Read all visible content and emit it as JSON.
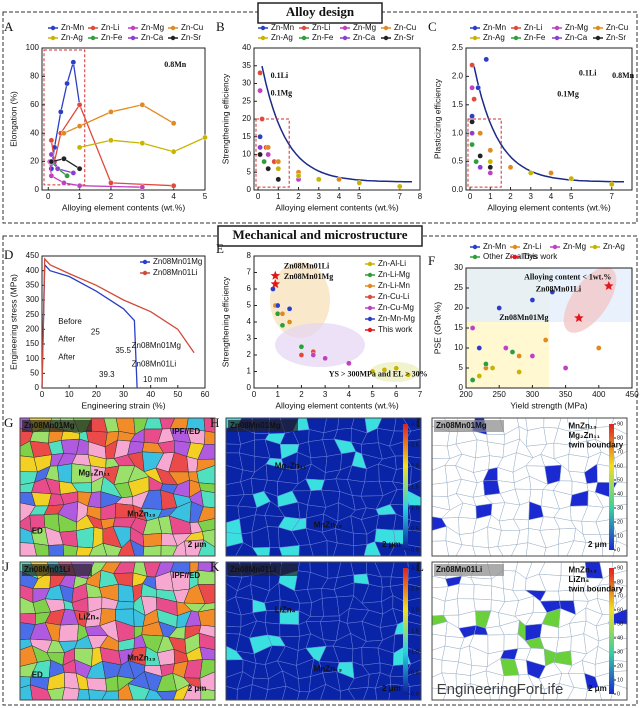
{
  "sections": [
    "Alloy design",
    "Mechanical and microstructure"
  ],
  "chart_data": [
    {
      "type": "line",
      "title": "A",
      "markers": true,
      "xlabel": "Alloying element contents (wt.%)",
      "ylabel": "Elongation (%)",
      "xlim": [
        -0.2,
        5
      ],
      "xticks": [
        0,
        1,
        2,
        3,
        4,
        5
      ],
      "ylim": [
        0,
        100
      ],
      "yticks": [
        0,
        20,
        40,
        60,
        80,
        100
      ],
      "series": [
        {
          "name": "Zn-Mn",
          "color": "#2b3fc4",
          "x": [
            0.1,
            0.2,
            0.4,
            0.6,
            0.8,
            1.0
          ],
          "values": [
            15,
            30,
            55,
            75,
            90,
            60
          ]
        },
        {
          "name": "Zn-Li",
          "color": "#e04a3a",
          "x": [
            0.1,
            0.2,
            0.4,
            1,
            2,
            4
          ],
          "values": [
            35,
            20,
            40,
            60,
            5,
            3
          ]
        },
        {
          "name": "Zn-Mg",
          "color": "#c040c0",
          "x": [
            0.05,
            0.1,
            0.5,
            1,
            3
          ],
          "values": [
            20,
            10,
            5,
            3,
            2
          ]
        },
        {
          "name": "Zn-Cu",
          "color": "#e08a1e",
          "x": [
            0.5,
            1,
            2,
            3,
            4
          ],
          "values": [
            40,
            45,
            55,
            60,
            47
          ]
        },
        {
          "name": "Zn-Ag",
          "color": "#c8b400",
          "x": [
            1,
            2,
            3,
            4,
            5
          ],
          "values": [
            30,
            35,
            33,
            27,
            37
          ]
        },
        {
          "name": "Zn-Fe",
          "color": "#2e9e3a",
          "x": [
            0.1,
            0.3,
            0.6
          ],
          "values": [
            20,
            15,
            10
          ]
        },
        {
          "name": "Zn-Ca",
          "color": "#8a3fd0",
          "x": [
            0.1,
            0.3,
            0.8
          ],
          "values": [
            25,
            15,
            12
          ]
        },
        {
          "name": "Zn-Sr",
          "color": "#222222",
          "x": [
            0.1,
            0.5,
            1
          ],
          "values": [
            20,
            22,
            15
          ]
        }
      ],
      "annotations": [
        "0.8Mn"
      ]
    },
    {
      "type": "scatter",
      "title": "B",
      "fit": true,
      "xlabel": "Alloying element contents (wt.%)",
      "ylabel": "Strengthening efficiency",
      "xlim": [
        -0.2,
        8
      ],
      "xticks": [
        0,
        1,
        2,
        3,
        4,
        5,
        7,
        8
      ],
      "ylim": [
        0,
        40
      ],
      "yticks": [
        0,
        5,
        10,
        15,
        20,
        25,
        30,
        35,
        40
      ],
      "series": [
        {
          "name": "Zn-Mn",
          "color": "#2b3fc4",
          "x": [
            0.1,
            0.4,
            0.8,
            1
          ],
          "values": [
            15,
            12,
            8,
            6
          ]
        },
        {
          "name": "Zn-Li",
          "color": "#e04a3a",
          "x": [
            0.1,
            0.2,
            0.4,
            0.8
          ],
          "values": [
            33,
            20,
            12,
            8
          ]
        },
        {
          "name": "Zn-Mg",
          "color": "#c040c0",
          "x": [
            0.1,
            0.5,
            1,
            2
          ],
          "values": [
            28,
            10,
            6,
            3
          ]
        },
        {
          "name": "Zn-Cu",
          "color": "#e08a1e",
          "x": [
            0.5,
            1,
            2,
            4
          ],
          "values": [
            12,
            8,
            5,
            3
          ]
        },
        {
          "name": "Zn-Ag",
          "color": "#c8b400",
          "x": [
            1,
            2,
            3,
            5,
            7
          ],
          "values": [
            6,
            4,
            3,
            2,
            1
          ]
        },
        {
          "name": "Zn-Fe",
          "color": "#2e9e3a",
          "x": [
            0.1,
            0.3
          ],
          "values": [
            10,
            8
          ]
        },
        {
          "name": "Zn-Ca",
          "color": "#8a3fd0",
          "x": [
            0.1,
            0.5
          ],
          "values": [
            12,
            6
          ]
        },
        {
          "name": "Zn-Sr",
          "color": "#222222",
          "x": [
            0.1,
            0.5,
            1
          ],
          "values": [
            10,
            6,
            3
          ]
        }
      ],
      "annotations": [
        "0.1Li",
        "0.1Mg"
      ]
    },
    {
      "type": "scatter",
      "title": "C",
      "fit": true,
      "xlabel": "Alloying element contents (wt.%)",
      "ylabel": "Plasticizing efficiency",
      "xlim": [
        -0.2,
        8
      ],
      "xticks": [
        0,
        1,
        2,
        3,
        4,
        5,
        7
      ],
      "ylim": [
        0,
        2.5
      ],
      "yticks": [
        {
          "value": 0,
          "label": "0.0"
        },
        0.5,
        {
          "value": 1,
          "label": "1.0"
        },
        1.5,
        {
          "value": 2,
          "label": "2.0"
        },
        2.5
      ],
      "series": [
        {
          "name": "Zn-Mn",
          "color": "#2b3fc4",
          "x": [
            0.1,
            0.4,
            0.8
          ],
          "values": [
            1.3,
            1.8,
            2.3
          ]
        },
        {
          "name": "Zn-Li",
          "color": "#e04a3a",
          "x": [
            0.1,
            0.2,
            0.5
          ],
          "values": [
            2.2,
            1.6,
            1.0
          ]
        },
        {
          "name": "Zn-Mg",
          "color": "#c040c0",
          "x": [
            0.1,
            0.5,
            1
          ],
          "values": [
            1.8,
            0.6,
            0.3
          ]
        },
        {
          "name": "Zn-Cu",
          "color": "#e08a1e",
          "x": [
            0.5,
            1,
            2,
            4
          ],
          "values": [
            1.0,
            0.7,
            0.4,
            0.3
          ]
        },
        {
          "name": "Zn-Ag",
          "color": "#c8b400",
          "x": [
            1,
            3,
            5,
            7
          ],
          "values": [
            0.5,
            0.3,
            0.2,
            0.1
          ]
        },
        {
          "name": "Zn-Fe",
          "color": "#2e9e3a",
          "x": [
            0.1,
            0.3
          ],
          "values": [
            0.8,
            0.5
          ]
        },
        {
          "name": "Zn-Ca",
          "color": "#8a3fd0",
          "x": [
            0.1,
            0.5
          ],
          "values": [
            1.0,
            0.4
          ]
        },
        {
          "name": "Zn-Sr",
          "color": "#222222",
          "x": [
            0.1,
            0.5,
            1
          ],
          "values": [
            1.2,
            0.6,
            0.4
          ]
        }
      ],
      "annotations": [
        "0.1Li",
        "0.8Mn",
        "0.1Mg"
      ]
    },
    {
      "type": "line",
      "title": "D",
      "markers": false,
      "xlabel": "Engineering strain (%)",
      "ylabel": "Engineering stress (MPa)",
      "xlim": [
        0,
        60
      ],
      "xticks": [
        0,
        10,
        20,
        30,
        40,
        50,
        60
      ],
      "ylim": [
        0,
        450
      ],
      "yticks": [
        0,
        50,
        100,
        150,
        200,
        250,
        300,
        350,
        400,
        450
      ],
      "series": [
        {
          "name": "Zn08Mn01Mg",
          "color": "#2b3fc4",
          "x": [
            0,
            1,
            3,
            10,
            20,
            30,
            34,
            35
          ],
          "values": [
            0,
            420,
            400,
            380,
            330,
            270,
            230,
            0
          ]
        },
        {
          "name": "Zn08Mn01Li",
          "color": "#d04a3a",
          "x": [
            0,
            1,
            3,
            10,
            20,
            30,
            40,
            50,
            56
          ],
          "values": [
            0,
            440,
            420,
            390,
            350,
            300,
            260,
            200,
            120
          ]
        }
      ],
      "annotations": [
        "Before",
        "After",
        "25",
        "Zn08Mn01Mg",
        "35.5",
        "After",
        "Zn08Mn01Li",
        "39.3",
        "10 mm"
      ]
    },
    {
      "type": "scatter",
      "title": "E",
      "xlabel": "Alloying element contents (wt.%)",
      "ylabel": "Strengthening efficiency",
      "xlim": [
        0,
        7
      ],
      "xticks": [
        0,
        1,
        2,
        3,
        4,
        5,
        6,
        7
      ],
      "ylim": [
        0,
        8
      ],
      "yticks": [
        0,
        1,
        2,
        3,
        4,
        5,
        6,
        7,
        8
      ],
      "series": [
        {
          "name": "Zn-Al-Li",
          "color": "#c8b400",
          "x": [
            5,
            5.5,
            6,
            6.5
          ],
          "values": [
            1,
            1.1,
            1.2,
            0.8
          ]
        },
        {
          "name": "Zn-Li-Mg",
          "color": "#2e9e3a",
          "x": [
            1,
            1.2,
            2
          ],
          "values": [
            4.5,
            3.8,
            2.5
          ]
        },
        {
          "name": "Zn-Li-Mn",
          "color": "#e08a1e",
          "x": [
            0.9,
            1.2,
            1.5
          ],
          "values": [
            5,
            4.5,
            4
          ]
        },
        {
          "name": "Zn-Cu-Li",
          "color": "#e04a3a",
          "x": [
            2,
            2.5,
            3
          ],
          "values": [
            2,
            2.2,
            1.8
          ]
        },
        {
          "name": "Zn-Cu-Mg",
          "color": "#c040c0",
          "x": [
            2.5,
            3,
            4
          ],
          "values": [
            2,
            1.8,
            1.5
          ]
        },
        {
          "name": "Zn-Mn-Mg",
          "color": "#2b3fc4",
          "x": [
            0.8,
            1,
            1.5
          ],
          "values": [
            6,
            5,
            4.8
          ]
        },
        {
          "name": "This work",
          "color": "#e0181c",
          "x": [
            0.9,
            0.9
          ],
          "values": [
            6.8,
            6.3
          ]
        }
      ],
      "annotations": [
        "Zn08Mn01Li",
        "Zn08Mn01Mg",
        "YS > 300MPa and EL > 30%"
      ]
    },
    {
      "type": "scatter",
      "title": "F",
      "xlabel": "Yield strength (MPa)",
      "ylabel": "PSE (GPa·%)",
      "xlim": [
        200,
        450
      ],
      "xticks": [
        200,
        250,
        300,
        350,
        400,
        450
      ],
      "ylim": [
        0,
        30
      ],
      "yticks": [
        0,
        5,
        10,
        15,
        20,
        25,
        30
      ],
      "series": [
        {
          "name": "Zn-Mn",
          "color": "#2b3fc4",
          "x": [
            220,
            250,
            300,
            330
          ],
          "values": [
            10,
            20,
            22,
            24
          ]
        },
        {
          "name": "Zn-Li",
          "color": "#e08a1e",
          "x": [
            230,
            280,
            320,
            400
          ],
          "values": [
            5,
            8,
            12,
            10
          ]
        },
        {
          "name": "Zn-Mg",
          "color": "#c040c0",
          "x": [
            210,
            260,
            300,
            350
          ],
          "values": [
            15,
            10,
            8,
            5
          ]
        },
        {
          "name": "Zn-Ag",
          "color": "#c8b400",
          "x": [
            220,
            240,
            280
          ],
          "values": [
            3,
            5,
            4
          ]
        },
        {
          "name": "Other Zn alloys",
          "color": "#2e9e3a",
          "x": [
            210,
            230,
            270
          ],
          "values": [
            2,
            6,
            9
          ]
        },
        {
          "name": "This work",
          "color": "#e0181c",
          "x": [
            370,
            415
          ],
          "values": [
            17.5,
            25.5
          ]
        }
      ],
      "annotations": [
        "Alloying content < 1wt.%",
        "Zn08Mn01Li",
        "Zn08Mn01Mg"
      ]
    }
  ],
  "images": [
    {
      "title": "G",
      "label": "Zn08Mn01Mg",
      "style": "ipf",
      "texts": [
        "IPF//ED",
        "Mg₂Zn₁₁",
        "MnZn₁₃",
        "ED",
        "2 μm"
      ]
    },
    {
      "title": "H",
      "label": "Zn08Mn01Mg",
      "style": "kam",
      "texts": [
        "Mg₂Zn₁₁",
        "MnZn₁₃",
        "2 μm"
      ],
      "colorbar": [
        {
          "value": 0,
          "label": "0.0"
        },
        0.5,
        {
          "value": 1,
          "label": "1.0"
        },
        1.5,
        {
          "value": 2,
          "label": "2.0"
        },
        2.5,
        {
          "value": 3,
          "label": "3.0"
        }
      ]
    },
    {
      "title": "I",
      "label": "Zn08Mn01Mg",
      "style": "phase",
      "texts": [
        "MnZn₁₃",
        "Mg₂Zn₁₁",
        "twin boundary",
        "2 μm"
      ],
      "colorbar": [
        0,
        10,
        20,
        30,
        40,
        50,
        60,
        70,
        80,
        90
      ]
    },
    {
      "title": "J",
      "label": "Zn08Mn01Li",
      "style": "ipf",
      "texts": [
        "IPF//ED",
        "LiZn₄",
        "MnZn₁₃",
        "ED",
        "2 μm"
      ]
    },
    {
      "title": "K",
      "label": "Zn08Mn01Li",
      "style": "kam",
      "texts": [
        "LiZn₄",
        "MnZn₁₃",
        "2 μm"
      ],
      "colorbar": [
        {
          "value": 0,
          "label": "0.0"
        },
        0.5,
        {
          "value": 1,
          "label": "1.0"
        },
        1.5,
        {
          "value": 2,
          "label": "2.0"
        },
        2.5,
        {
          "value": 3,
          "label": "3.0"
        }
      ]
    },
    {
      "title": "L",
      "label": "Zn08Mn01Li",
      "style": "phase",
      "texts": [
        "MnZn₁₃",
        "LiZn₄",
        "twin boundary",
        "2 μm"
      ],
      "colorbar": [
        0,
        10,
        20,
        30,
        40,
        50,
        60,
        70,
        80,
        90
      ]
    }
  ],
  "watermark": "EngineeringForLife"
}
